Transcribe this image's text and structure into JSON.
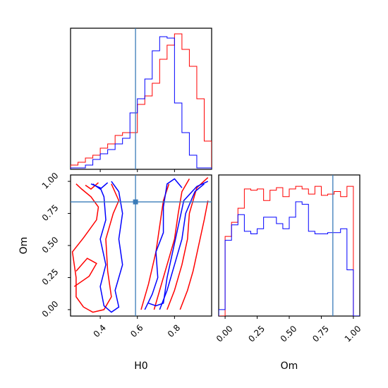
{
  "chart_data": [
    {
      "panel": "top-left",
      "type": "histogram",
      "xlim": [
        0.24,
        1.0
      ],
      "ylim": [
        0,
        1.0
      ],
      "marker_x": 0.59,
      "bin_edges": [
        0.24,
        0.28,
        0.32,
        0.36,
        0.4,
        0.44,
        0.48,
        0.52,
        0.56,
        0.6,
        0.64,
        0.68,
        0.72,
        0.76,
        0.8,
        0.84,
        0.88,
        0.92,
        0.96,
        1.0
      ],
      "series": [
        {
          "color": "#ff0000",
          "values": [
            0.03,
            0.05,
            0.08,
            0.1,
            0.15,
            0.18,
            0.24,
            0.26,
            0.26,
            0.46,
            0.52,
            0.61,
            0.78,
            0.88,
            0.96,
            0.85,
            0.73,
            0.5,
            0.2
          ]
        },
        {
          "color": "#0000ff",
          "values": [
            0.01,
            0.01,
            0.03,
            0.07,
            0.11,
            0.14,
            0.18,
            0.22,
            0.4,
            0.5,
            0.64,
            0.84,
            0.94,
            0.93,
            0.47,
            0.26,
            0.1,
            0.01,
            0.01
          ]
        }
      ]
    },
    {
      "panel": "bottom-left",
      "type": "contour",
      "xlabel": "H0",
      "ylabel": "Om",
      "xlim": [
        0.24,
        1.0
      ],
      "ylim": [
        -0.05,
        1.05
      ],
      "xticks": [
        "0.4",
        "0.6",
        "0.8"
      ],
      "yticks": [
        "0.00",
        "0.25",
        "0.50",
        "0.75",
        "1.00"
      ],
      "marker": [
        0.59,
        0.84
      ],
      "series": [
        {
          "color": "#ff0000",
          "contours": [
            [
              [
                0.27,
                0.98
              ],
              [
                0.3,
                0.94
              ],
              [
                0.35,
                0.88
              ],
              [
                0.39,
                0.8
              ],
              [
                0.38,
                0.7
              ],
              [
                0.31,
                0.56
              ],
              [
                0.25,
                0.45
              ],
              [
                0.27,
                0.25
              ],
              [
                0.27,
                0.1
              ],
              [
                0.31,
                0.02
              ]
            ],
            [
              [
                0.31,
                0.02
              ],
              [
                0.36,
                -0.02
              ],
              [
                0.42,
                0.0
              ],
              [
                0.46,
                0.1
              ],
              [
                0.44,
                0.3
              ],
              [
                0.43,
                0.55
              ],
              [
                0.47,
                0.75
              ],
              [
                0.5,
                0.85
              ],
              [
                0.46,
                0.98
              ]
            ],
            [
              [
                0.32,
                0.97
              ],
              [
                0.35,
                0.94
              ],
              [
                0.39,
                0.99
              ]
            ],
            [
              [
                0.26,
                0.18
              ],
              [
                0.34,
                0.26
              ],
              [
                0.38,
                0.36
              ],
              [
                0.33,
                0.4
              ],
              [
                0.27,
                0.3
              ]
            ],
            [
              [
                0.62,
                0.0
              ],
              [
                0.66,
                0.2
              ],
              [
                0.7,
                0.45
              ],
              [
                0.72,
                0.65
              ],
              [
                0.74,
                0.85
              ],
              [
                0.77,
                0.98
              ]
            ],
            [
              [
                0.69,
                0.0
              ],
              [
                0.72,
                0.15
              ],
              [
                0.76,
                0.35
              ],
              [
                0.8,
                0.55
              ],
              [
                0.82,
                0.75
              ],
              [
                0.84,
                0.92
              ],
              [
                0.88,
                1.02
              ]
            ],
            [
              [
                0.76,
                0.0
              ],
              [
                0.8,
                0.15
              ],
              [
                0.84,
                0.35
              ],
              [
                0.87,
                0.55
              ],
              [
                0.88,
                0.75
              ],
              [
                0.92,
                0.95
              ],
              [
                0.98,
                1.03
              ]
            ],
            [
              [
                0.83,
                0.0
              ],
              [
                0.87,
                0.15
              ],
              [
                0.9,
                0.3
              ],
              [
                0.93,
                0.5
              ],
              [
                0.96,
                0.7
              ],
              [
                0.98,
                0.85
              ]
            ]
          ]
        },
        {
          "color": "#0000ff",
          "contours": [
            [
              [
                0.35,
                0.98
              ],
              [
                0.4,
                0.95
              ],
              [
                0.42,
                0.88
              ],
              [
                0.43,
                0.7
              ],
              [
                0.4,
                0.55
              ],
              [
                0.43,
                0.35
              ],
              [
                0.4,
                0.18
              ],
              [
                0.42,
                0.03
              ],
              [
                0.46,
                -0.02
              ],
              [
                0.5,
                0.02
              ],
              [
                0.48,
                0.15
              ],
              [
                0.52,
                0.35
              ],
              [
                0.5,
                0.55
              ],
              [
                0.52,
                0.75
              ],
              [
                0.5,
                0.92
              ],
              [
                0.46,
                1.0
              ]
            ],
            [
              [
                0.36,
                0.98
              ],
              [
                0.4,
                0.94
              ],
              [
                0.44,
                0.99
              ]
            ],
            [
              [
                0.64,
                0.0
              ],
              [
                0.68,
                0.12
              ],
              [
                0.71,
                0.25
              ],
              [
                0.7,
                0.45
              ],
              [
                0.74,
                0.6
              ],
              [
                0.74,
                0.8
              ],
              [
                0.76,
                0.98
              ],
              [
                0.8,
                1.02
              ],
              [
                0.84,
                0.95
              ]
            ],
            [
              [
                0.66,
                0.05
              ],
              [
                0.7,
                0.03
              ],
              [
                0.74,
                0.05
              ],
              [
                0.76,
                0.25
              ],
              [
                0.79,
                0.45
              ],
              [
                0.82,
                0.65
              ],
              [
                0.85,
                0.85
              ],
              [
                0.92,
                0.96
              ],
              [
                0.98,
                1.0
              ]
            ],
            [
              [
                0.72,
                0.0
              ],
              [
                0.76,
                0.15
              ],
              [
                0.8,
                0.35
              ],
              [
                0.84,
                0.55
              ],
              [
                0.86,
                0.75
              ],
              [
                0.91,
                0.92
              ],
              [
                0.96,
                0.98
              ]
            ]
          ]
        }
      ]
    },
    {
      "panel": "bottom-right",
      "type": "histogram",
      "xlabel": "Om",
      "xlim": [
        -0.05,
        1.05
      ],
      "ylim": [
        0,
        1.0
      ],
      "xticks": [
        "0.00",
        "0.25",
        "0.50",
        "0.75",
        "1.00"
      ],
      "marker_x": 0.84,
      "bin_edges": [
        -0.05,
        0.0,
        0.05,
        0.1,
        0.15,
        0.2,
        0.25,
        0.3,
        0.35,
        0.4,
        0.45,
        0.5,
        0.55,
        0.6,
        0.65,
        0.7,
        0.75,
        0.8,
        0.85,
        0.9,
        0.95,
        1.0,
        1.05
      ],
      "series": [
        {
          "color": "#ff0000",
          "values": [
            0.0,
            0.62,
            0.73,
            0.84,
            0.99,
            0.98,
            0.99,
            0.9,
            0.98,
            1.0,
            0.93,
            0.99,
            1.01,
            0.99,
            0.95,
            1.01,
            0.94,
            0.95,
            0.97,
            0.93,
            1.01,
            0.0
          ]
        },
        {
          "color": "#0000ff",
          "values": [
            0.05,
            0.59,
            0.71,
            0.79,
            0.66,
            0.64,
            0.68,
            0.77,
            0.77,
            0.72,
            0.68,
            0.77,
            0.89,
            0.87,
            0.66,
            0.64,
            0.64,
            0.65,
            0.65,
            0.68,
            0.36,
            0.0
          ]
        }
      ]
    }
  ]
}
